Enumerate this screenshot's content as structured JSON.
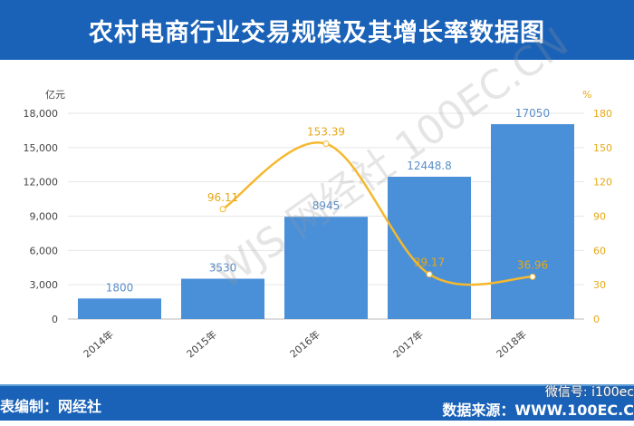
{
  "title": "农村电商行业交易规模及其增长率数据图",
  "footer": {
    "credit": "表编制：网经社",
    "source": "数据来源：WWW.100EC.C",
    "wechat": "微信号: i100ec"
  },
  "watermark": "WJS 网经社 100EC.CN",
  "colors": {
    "bar": "#4a90d9",
    "line": "#f5b82e",
    "banner": "#1a62b8"
  },
  "chart_data": {
    "type": "bar+line",
    "categories": [
      "2014年",
      "2015年",
      "2016年",
      "2017年",
      "2018年"
    ],
    "series": [
      {
        "type": "bar",
        "axis": "left",
        "values": [
          1800,
          3530,
          8945,
          12448.8,
          17050
        ],
        "labels": [
          "1800",
          "3530",
          "8945",
          "12448.8",
          "17050"
        ]
      },
      {
        "type": "line",
        "axis": "right",
        "values": [
          null,
          96.11,
          153.39,
          39.17,
          36.96
        ],
        "labels": [
          "",
          "96.11",
          "153.39",
          "39.17",
          "36.96"
        ]
      }
    ],
    "left_axis": {
      "unit": "亿元",
      "ylim": [
        0,
        18000
      ],
      "ticks": [
        "0",
        "3,000",
        "6,000",
        "9,000",
        "12,000",
        "15,000",
        "18,000"
      ]
    },
    "right_axis": {
      "unit": "%",
      "ylim": [
        0,
        180
      ],
      "ticks": [
        "0",
        "30",
        "60",
        "90",
        "120",
        "150",
        "180"
      ]
    },
    "grid": true
  }
}
